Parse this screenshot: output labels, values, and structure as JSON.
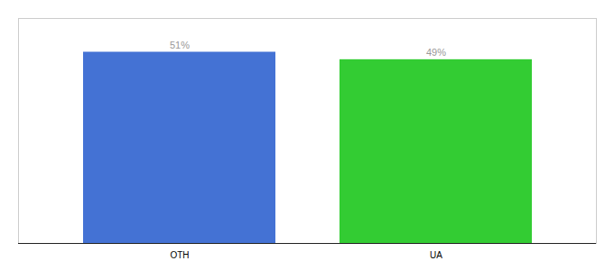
{
  "chart_data": {
    "type": "bar",
    "categories": [
      "OTH",
      "UA"
    ],
    "values": [
      51,
      49
    ],
    "value_labels": [
      "51%",
      "49%"
    ],
    "colors": [
      "#4472d4",
      "#33cc33"
    ],
    "ylim": [
      0,
      60
    ],
    "data_labels": true,
    "tick_labels": "x"
  }
}
